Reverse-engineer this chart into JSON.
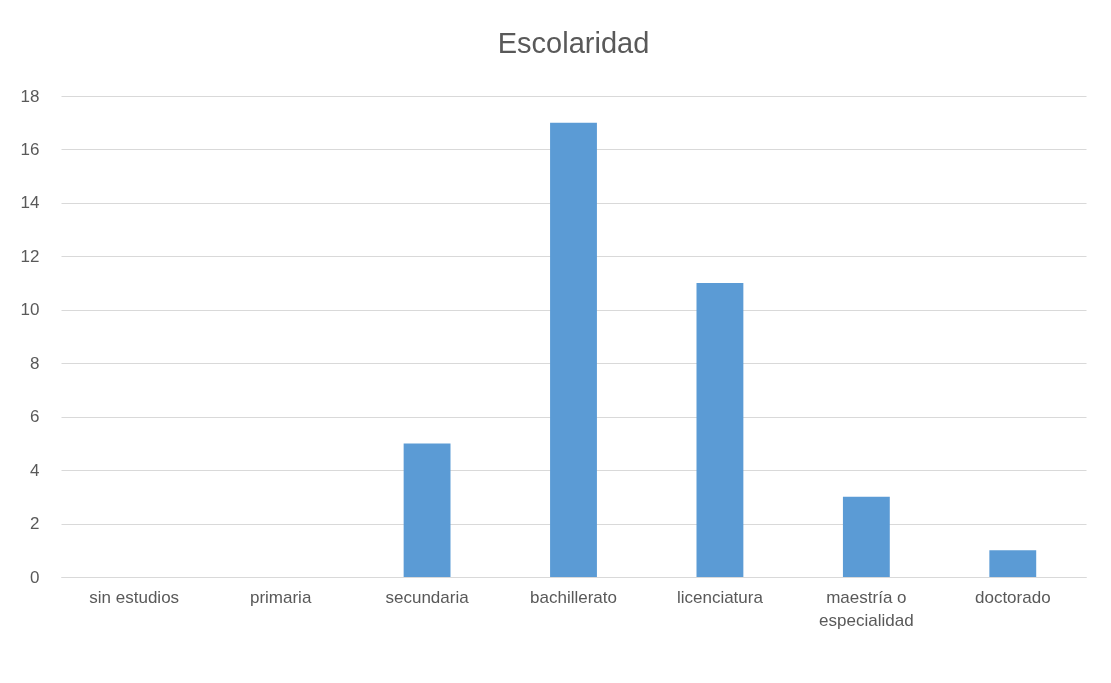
{
  "chart_data": {
    "type": "bar",
    "title": "Escolaridad",
    "categories": [
      "sin estudios",
      "primaria",
      "secundaria",
      "bachillerato",
      "licenciatura",
      "maestría o especialidad",
      "doctorado"
    ],
    "values": [
      0,
      0,
      5,
      17,
      11,
      3,
      1
    ],
    "color": "#5b9bd5",
    "ylim": [
      0,
      18
    ],
    "yticks": [
      0,
      2,
      4,
      6,
      8,
      10,
      12,
      14,
      16,
      18
    ],
    "grid": "y"
  }
}
